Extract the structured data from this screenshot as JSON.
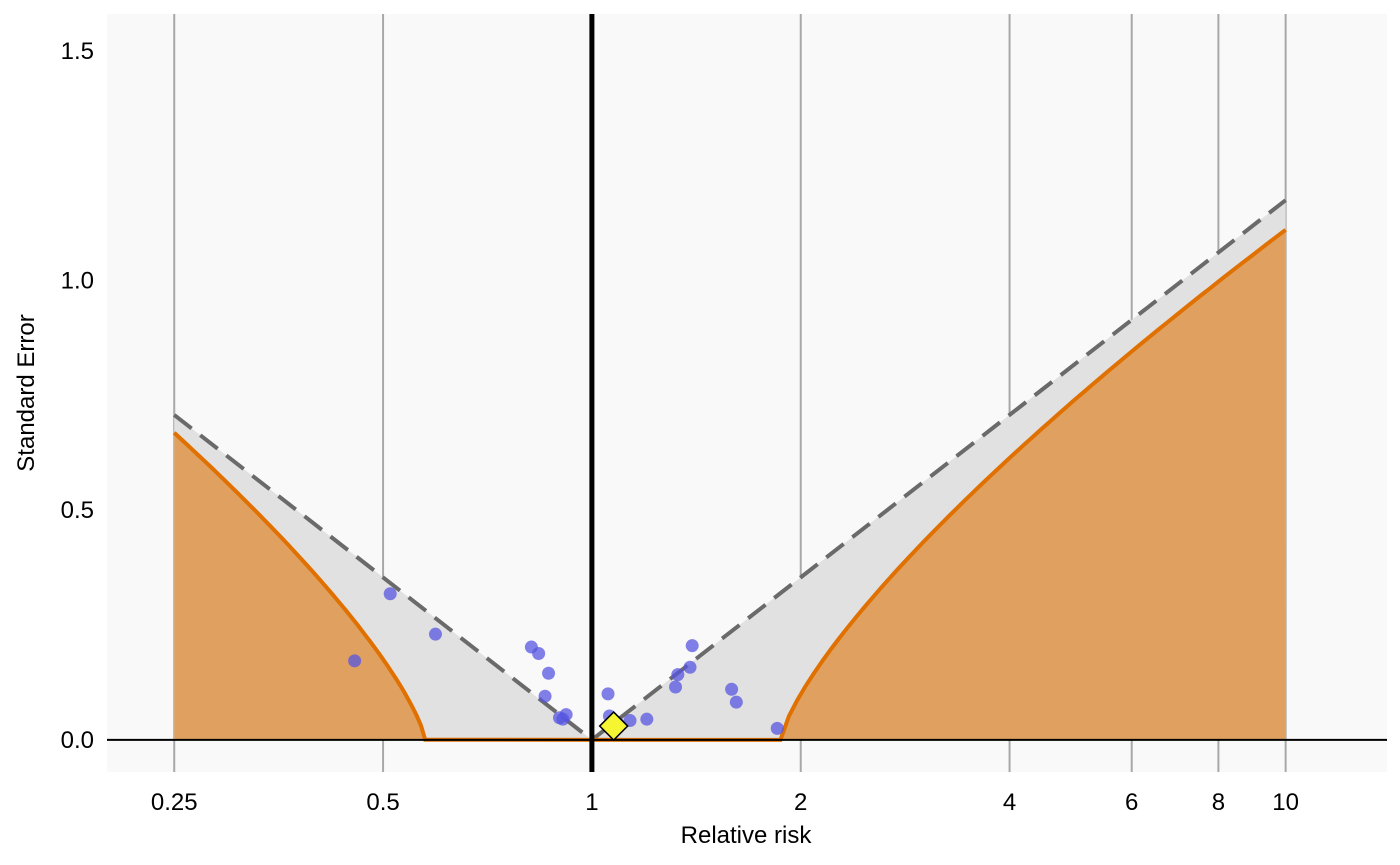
{
  "chart_data": {
    "type": "scatter",
    "title": "",
    "xlabel": "Relative risk",
    "ylabel": "Standard Error",
    "x_scale": "log",
    "xlim": [
      0.2,
      14
    ],
    "ylim": [
      -0.07,
      1.58
    ],
    "x_ticks": [
      0.25,
      0.5,
      1,
      2,
      4,
      6,
      8,
      10
    ],
    "x_tick_labels": [
      "0.25",
      "0.5",
      "1",
      "2",
      "4",
      "6",
      "8",
      "10"
    ],
    "y_ticks": [
      0.0,
      0.5,
      1.0,
      1.5
    ],
    "y_tick_labels": [
      "0.0",
      "0.5",
      "1.0",
      "1.5"
    ],
    "reference_line_x": 1,
    "grid": "vertical lines at x ticks",
    "funnel_x": [
      0.25,
      10
    ],
    "funnel_z": 1.96,
    "shaded_region": {
      "description": "orange region where study estimate would be statistically significant",
      "color": "#E0A160",
      "edge_color": "#E07000",
      "left_zero_at_x": 0.575,
      "right_zero_at_x": 1.87,
      "curve_power": 0.75
    },
    "colors": {
      "panel_background": "#F9F9F9",
      "funnel_fill": "#E1E1E1",
      "funnel_dash": "#6A6A6A",
      "grid": "#A8A8A8",
      "points": "#5555E0",
      "estimate_marker": "#F5F532"
    },
    "points": [
      {
        "x": 0.455,
        "y": 0.172
      },
      {
        "x": 0.512,
        "y": 0.318
      },
      {
        "x": 0.595,
        "y": 0.23
      },
      {
        "x": 0.818,
        "y": 0.202
      },
      {
        "x": 0.838,
        "y": 0.188
      },
      {
        "x": 0.866,
        "y": 0.145
      },
      {
        "x": 0.856,
        "y": 0.095
      },
      {
        "x": 0.898,
        "y": 0.048
      },
      {
        "x": 0.908,
        "y": 0.045
      },
      {
        "x": 0.918,
        "y": 0.055
      },
      {
        "x": 1.055,
        "y": 0.1
      },
      {
        "x": 1.06,
        "y": 0.052
      },
      {
        "x": 1.09,
        "y": 0.035
      },
      {
        "x": 1.135,
        "y": 0.042
      },
      {
        "x": 1.2,
        "y": 0.045
      },
      {
        "x": 1.32,
        "y": 0.115
      },
      {
        "x": 1.33,
        "y": 0.142
      },
      {
        "x": 1.385,
        "y": 0.158
      },
      {
        "x": 1.395,
        "y": 0.205
      },
      {
        "x": 1.59,
        "y": 0.11
      },
      {
        "x": 1.615,
        "y": 0.082
      },
      {
        "x": 1.85,
        "y": 0.025
      }
    ],
    "summary_estimate": {
      "x": 1.075,
      "y": 0.03
    }
  }
}
